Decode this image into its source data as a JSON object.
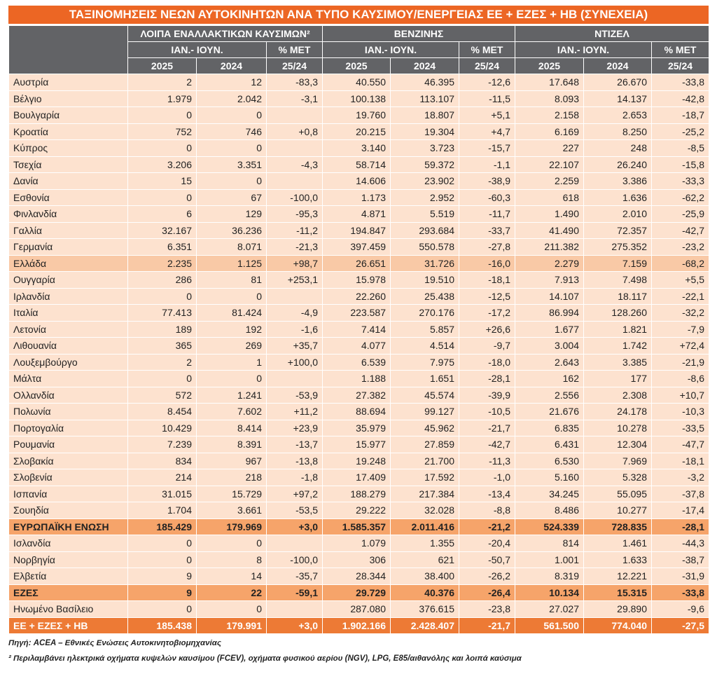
{
  "title": "ΤΑΞΙΝΟΜΗΣΕΙΣ ΝΕΩΝ ΑΥΤΟΚΙΝΗΤΩΝ ΑΝΑ ΤΥΠΟ ΚΑΥΣΙΜΟΥ/ΕΝΕΡΓΕΙΑΣ  ΕΕ + ΕΖΕΣ + ΗΒ (ΣΥΝΕΧΕΙΑ)",
  "table": {
    "groups": [
      "ΛΟΙΠΑ ΕΝΑΛΛΑΚΤΙΚΩΝ ΚΑΥΣΙΜΩΝ²",
      "ΒΕΝΖΙΝΗΣ",
      "ΝΤΙΖΕΛ"
    ],
    "subheaders": [
      [
        "ΙΑΝ.- ΙΟΥΝ.",
        "% ΜΕΤ"
      ],
      [
        "ΙΑΝ.- ΙΟΥΝ.",
        "% ΜΕΤ"
      ],
      [
        "ΙΑΝ.- ΙΟΥΝ.",
        "% ΜΕΤ"
      ]
    ],
    "periods": [
      [
        "2025",
        "2024",
        "25/24"
      ],
      [
        "2025",
        "2024",
        "25/24"
      ],
      [
        "2025",
        "2024",
        "25/24"
      ]
    ],
    "rows": [
      [
        "Αυστρία",
        "2",
        "12",
        "-83,3",
        "40.550",
        "46.395",
        "-12,6",
        "17.648",
        "26.670",
        "-33,8"
      ],
      [
        "Βέλγιο",
        "1.979",
        "2.042",
        "-3,1",
        "100.138",
        "113.107",
        "-11,5",
        "8.093",
        "14.137",
        "-42,8"
      ],
      [
        "Βουλγαρία",
        "0",
        "0",
        null,
        "19.760",
        "18.807",
        "+5,1",
        "2.158",
        "2.653",
        "-18,7"
      ],
      [
        "Κροατία",
        "752",
        "746",
        "+0,8",
        "20.215",
        "19.304",
        "+4,7",
        "6.169",
        "8.250",
        "-25,2"
      ],
      [
        "Κύπρος",
        "0",
        "0",
        null,
        "3.140",
        "3.723",
        "-15,7",
        "227",
        "248",
        "-8,5"
      ],
      [
        "Τσεχία",
        "3.206",
        "3.351",
        "-4,3",
        "58.714",
        "59.372",
        "-1,1",
        "22.107",
        "26.240",
        "-15,8"
      ],
      [
        "Δανία",
        "15",
        "0",
        null,
        "14.606",
        "23.902",
        "-38,9",
        "2.259",
        "3.386",
        "-33,3"
      ],
      [
        "Εσθονία",
        "0",
        "67",
        "-100,0",
        "1.173",
        "2.952",
        "-60,3",
        "618",
        "1.636",
        "-62,2"
      ],
      [
        "Φινλανδία",
        "6",
        "129",
        "-95,3",
        "4.871",
        "5.519",
        "-11,7",
        "1.490",
        "2.010",
        "-25,9"
      ],
      [
        "Γαλλία",
        "32.167",
        "36.236",
        "-11,2",
        "194.847",
        "293.684",
        "-33,7",
        "41.490",
        "72.357",
        "-42,7"
      ],
      [
        "Γερμανία",
        "6.351",
        "8.071",
        "-21,3",
        "397.459",
        "550.578",
        "-27,8",
        "211.382",
        "275.352",
        "-23,2"
      ],
      [
        "Ελλάδα",
        "2.235",
        "1.125",
        "+98,7",
        "26.651",
        "31.726",
        "-16,0",
        "2.279",
        "7.159",
        "-68,2"
      ],
      [
        "Ουγγαρία",
        "286",
        "81",
        "+253,1",
        "15.978",
        "19.510",
        "-18,1",
        "7.913",
        "7.498",
        "+5,5"
      ],
      [
        "Ιρλανδία",
        "0",
        "0",
        null,
        "22.260",
        "25.438",
        "-12,5",
        "14.107",
        "18.117",
        "-22,1"
      ],
      [
        "Ιταλία",
        "77.413",
        "81.424",
        "-4,9",
        "223.587",
        "270.176",
        "-17,2",
        "86.994",
        "128.260",
        "-32,2"
      ],
      [
        "Λετονία",
        "189",
        "192",
        "-1,6",
        "7.414",
        "5.857",
        "+26,6",
        "1.677",
        "1.821",
        "-7,9"
      ],
      [
        "Λιθουανία",
        "365",
        "269",
        "+35,7",
        "4.077",
        "4.514",
        "-9,7",
        "3.004",
        "1.742",
        "+72,4"
      ],
      [
        "Λουξεμβούργο",
        "2",
        "1",
        "+100,0",
        "6.539",
        "7.975",
        "-18,0",
        "2.643",
        "3.385",
        "-21,9"
      ],
      [
        "Μάλτα",
        "0",
        "0",
        null,
        "1.188",
        "1.651",
        "-28,1",
        "162",
        "177",
        "-8,6"
      ],
      [
        "Ολλανδία",
        "572",
        "1.241",
        "-53,9",
        "27.382",
        "45.574",
        "-39,9",
        "2.556",
        "2.308",
        "+10,7"
      ],
      [
        "Πολωνία",
        "8.454",
        "7.602",
        "+11,2",
        "88.694",
        "99.127",
        "-10,5",
        "21.676",
        "24.178",
        "-10,3"
      ],
      [
        "Πορτογαλία",
        "10.429",
        "8.414",
        "+23,9",
        "35.979",
        "45.962",
        "-21,7",
        "6.835",
        "10.278",
        "-33,5"
      ],
      [
        "Ρουμανία",
        "7.239",
        "8.391",
        "-13,7",
        "15.977",
        "27.859",
        "-42,7",
        "6.431",
        "12.304",
        "-47,7"
      ],
      [
        "Σλοβακία",
        "834",
        "967",
        "-13,8",
        "19.248",
        "21.700",
        "-11,3",
        "6.530",
        "7.969",
        "-18,1"
      ],
      [
        "Σλοβενία",
        "214",
        "218",
        "-1,8",
        "17.409",
        "17.592",
        "-1,0",
        "5.160",
        "5.328",
        "-3,2"
      ],
      [
        "Ισπανία",
        "31.015",
        "15.729",
        "+97,2",
        "188.279",
        "217.384",
        "-13,4",
        "34.245",
        "55.095",
        "-37,8"
      ],
      [
        "Σουηδία",
        "1.704",
        "3.661",
        "-53,5",
        "29.222",
        "32.028",
        "-8,8",
        "8.486",
        "10.277",
        "-17,4"
      ],
      [
        "ΕΥΡΩΠΑΪΚΗ ΕΝΩΣΗ",
        "185.429",
        "179.969",
        "+3,0",
        "1.585.357",
        "2.011.416",
        "-21,2",
        "524.339",
        "728.835",
        "-28,1"
      ],
      [
        "Ισλανδία",
        "0",
        "0",
        null,
        "1.079",
        "1.355",
        "-20,4",
        "814",
        "1.461",
        "-44,3"
      ],
      [
        "Νορβηγία",
        "0",
        "8",
        "-100,0",
        "306",
        "621",
        "-50,7",
        "1.001",
        "1.633",
        "-38,7"
      ],
      [
        "Ελβετία",
        "9",
        "14",
        "-35,7",
        "28.344",
        "38.400",
        "-26,2",
        "8.319",
        "12.221",
        "-31,9"
      ],
      [
        "ΕΖΕΣ",
        "9",
        "22",
        "-59,1",
        "29.729",
        "40.376",
        "-26,4",
        "10.134",
        "15.315",
        "-33,8"
      ],
      [
        "Ηνωμένο Βασίλειο",
        "0",
        "0",
        null,
        "287.080",
        "376.615",
        "-23,8",
        "27.027",
        "29.890",
        "-9,6"
      ],
      [
        "ΕΕ + ΕΖΕΣ + ΗΒ",
        "185.438",
        "179.991",
        "+3,0",
        "1.902.166",
        "2.428.407",
        "-21,7",
        "561.500",
        "774.040",
        "-27,5"
      ]
    ]
  },
  "notes": [
    "Πηγή: ACEA – Εθνικές Ενώσεις Αυτοκινητοβιομηχανίας",
    "² Περιλαμβάνει ηλεκτρικά οχήματα κυψελών καυσίμου (FCEV), οχήματα φυσικού αερίου (NGV), LPG, E85/αιθανόλης και λοιπά καύσιμα"
  ]
}
